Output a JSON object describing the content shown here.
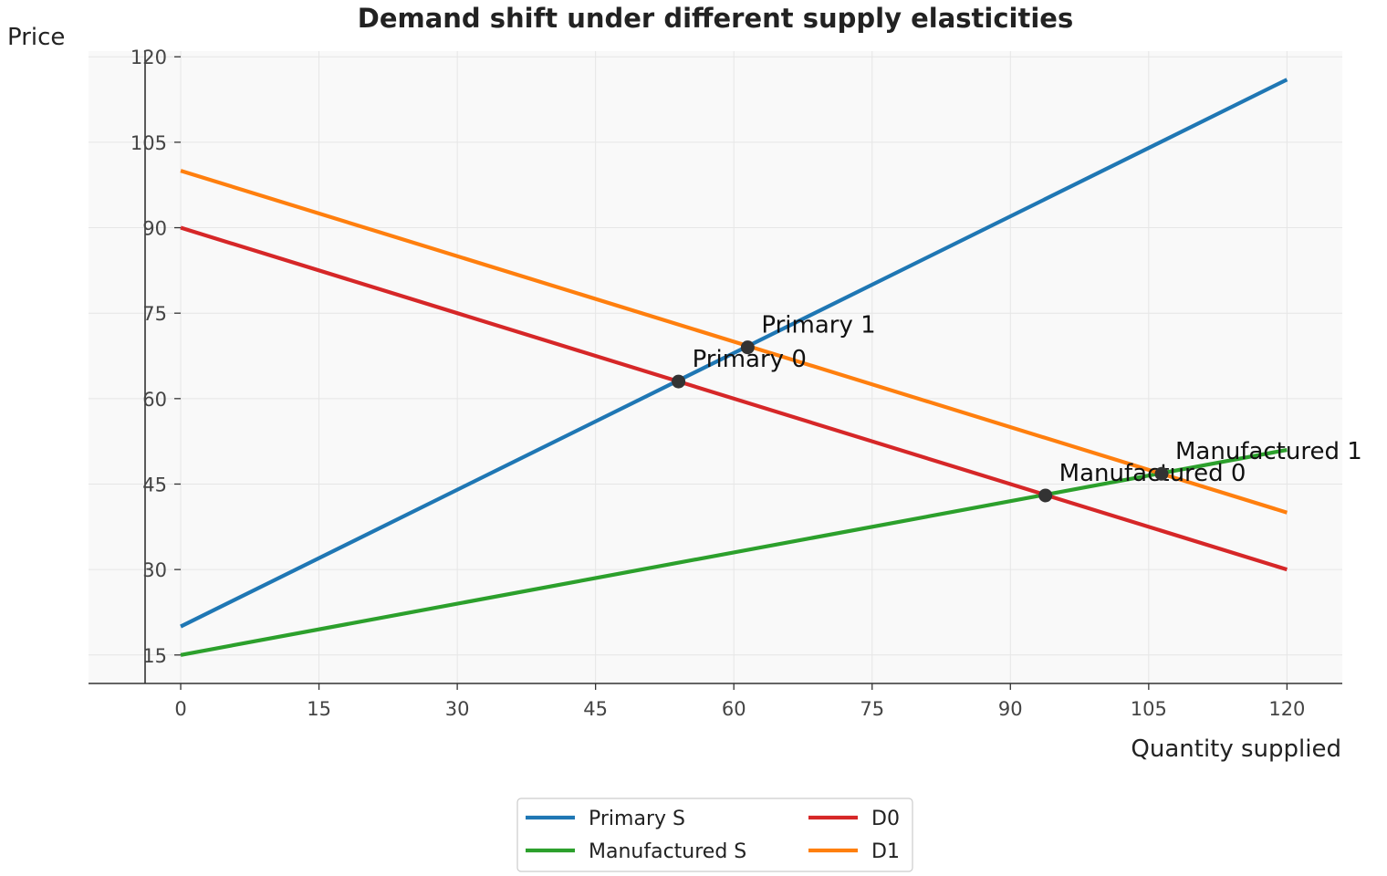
{
  "chart_data": {
    "type": "line",
    "title": "Demand shift under different supply elasticities",
    "xlabel": "Quantity supplied",
    "ylabel": "Price",
    "xlim": [
      -10,
      126
    ],
    "ylim": [
      10,
      121
    ],
    "xticks": [
      0,
      15,
      30,
      45,
      60,
      75,
      90,
      105,
      120
    ],
    "yticks": [
      15,
      30,
      45,
      60,
      75,
      90,
      105,
      120
    ],
    "grid": true,
    "legend_position": "bottom-center",
    "series": [
      {
        "name": "Primary S",
        "color": "#1f77b4",
        "x": [
          0,
          120
        ],
        "y": [
          20,
          116
        ]
      },
      {
        "name": "Manufactured S",
        "color": "#2ca02c",
        "x": [
          0,
          120
        ],
        "y": [
          15,
          51
        ]
      },
      {
        "name": "D0",
        "color": "#d62728",
        "x": [
          0,
          120
        ],
        "y": [
          90,
          30
        ]
      },
      {
        "name": "D1",
        "color": "#ff7f0e",
        "x": [
          0,
          120
        ],
        "y": [
          100,
          40
        ]
      }
    ],
    "points": [
      {
        "label": "Primary 0",
        "x": 54,
        "y": 63
      },
      {
        "label": "Primary 1",
        "x": 61.5,
        "y": 69
      },
      {
        "label": "Manufactured 0",
        "x": 93.8,
        "y": 43
      },
      {
        "label": "Manufactured 1",
        "x": 106.4,
        "y": 46.8
      }
    ],
    "point_color": "#333333"
  }
}
